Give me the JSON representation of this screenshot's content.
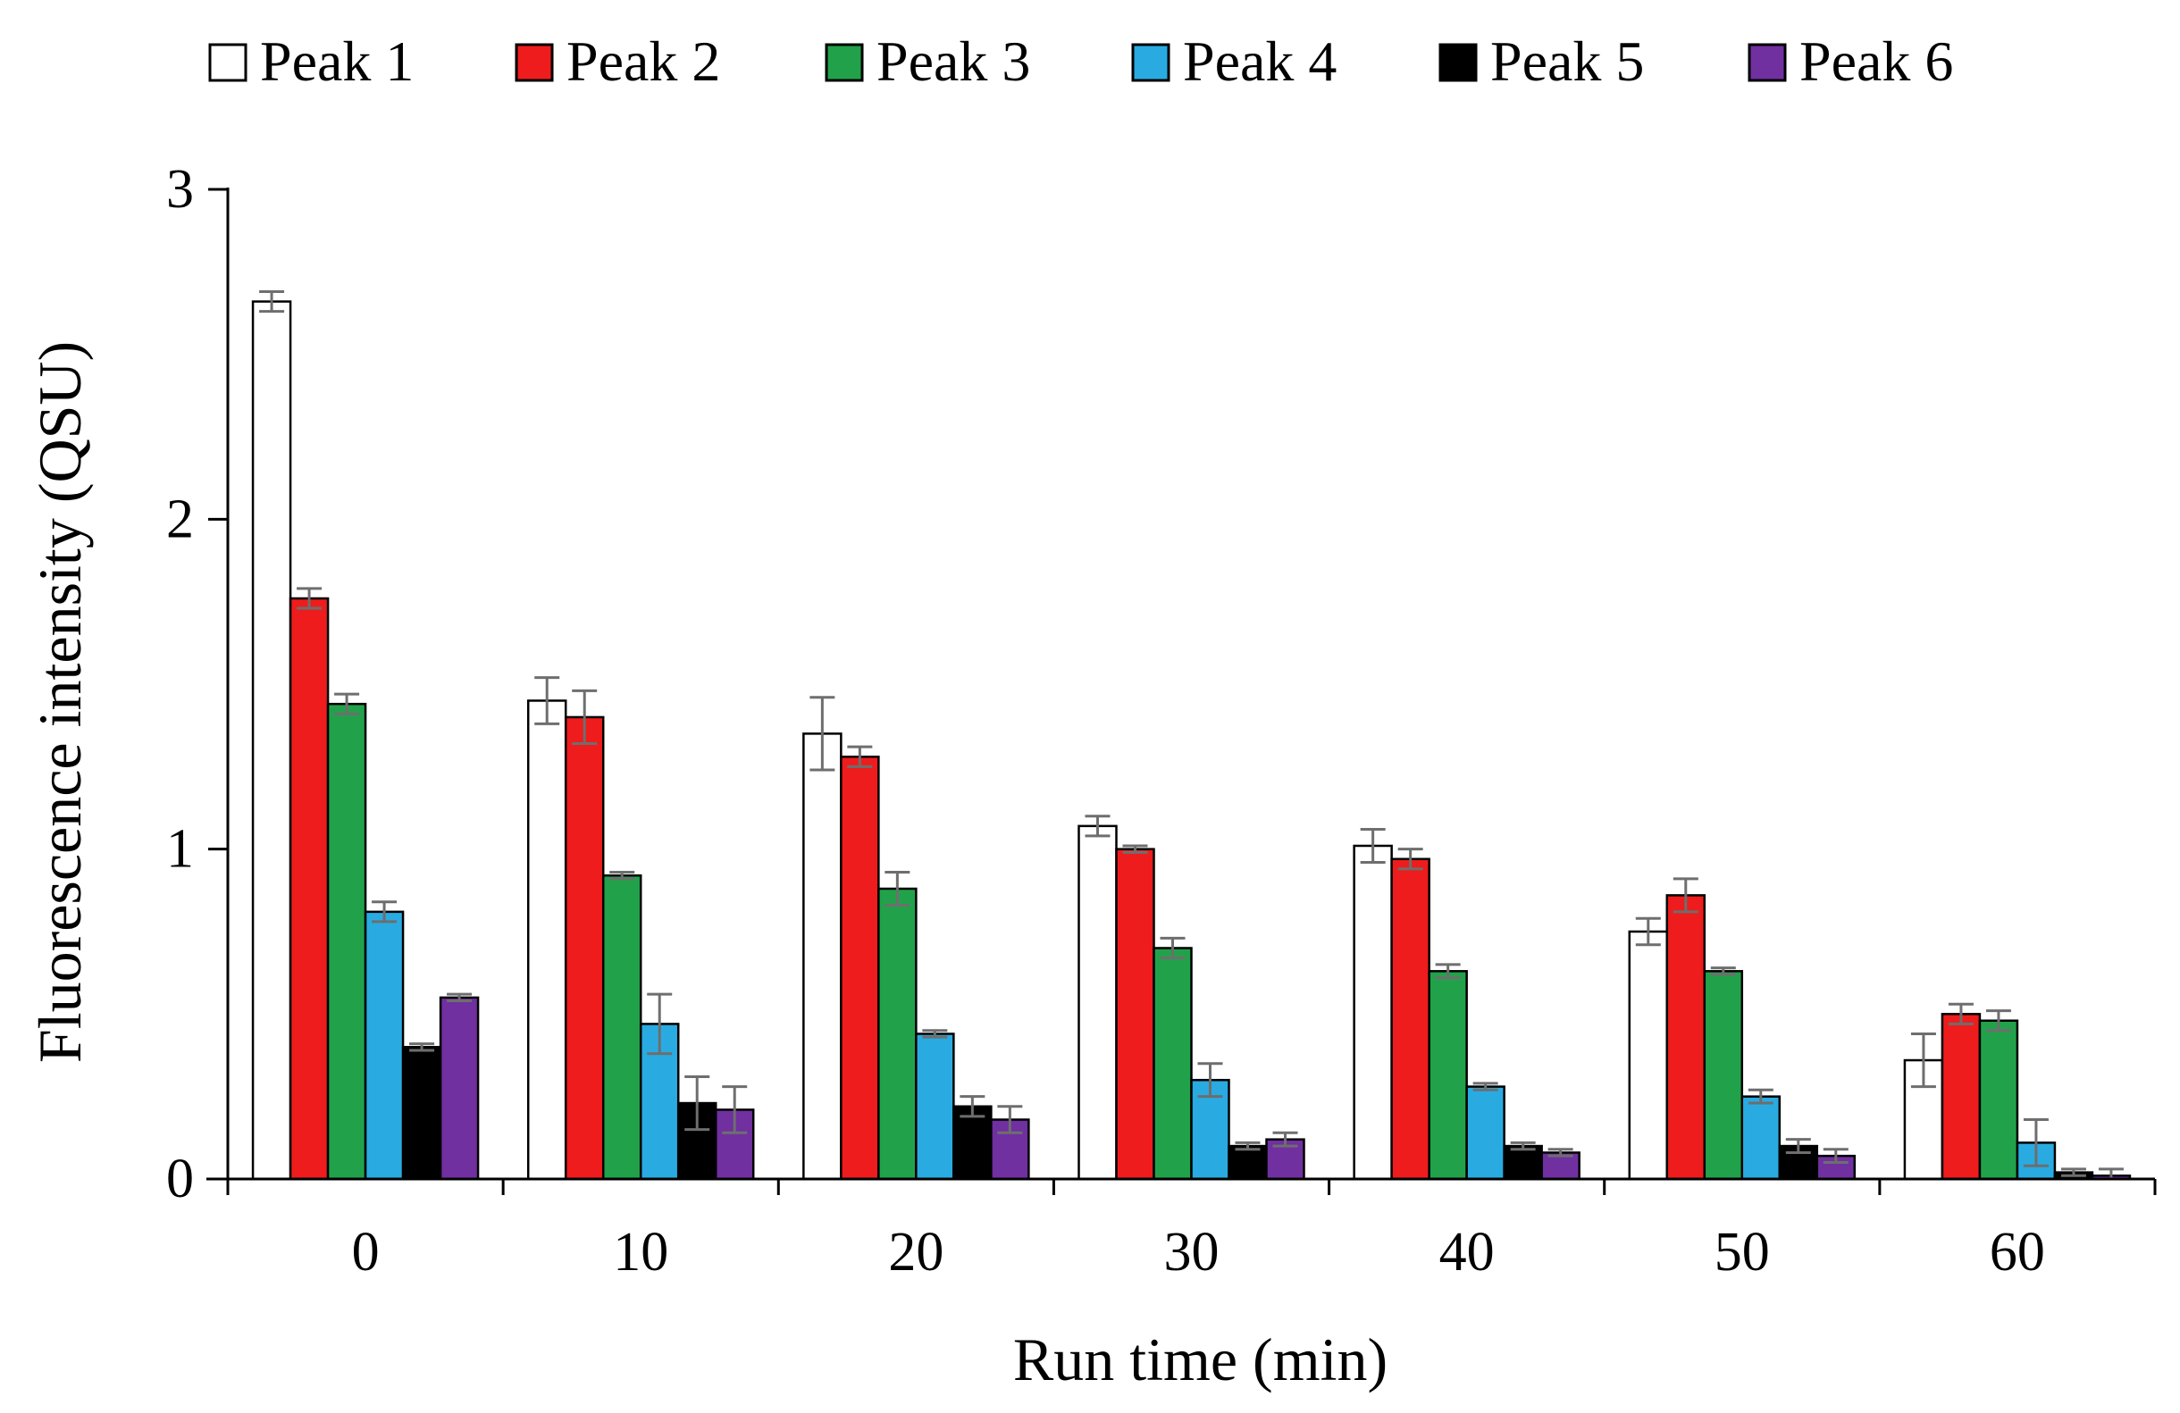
{
  "chart_data": {
    "type": "bar",
    "title": "",
    "xlabel": "Run time (min)",
    "ylabel": "Fluorescence intensity (QSU)",
    "categories": [
      "0",
      "10",
      "20",
      "30",
      "40",
      "50",
      "60"
    ],
    "ylim": [
      0,
      3
    ],
    "yticks": [
      "0",
      "1",
      "2",
      "3"
    ],
    "legend_position": "top",
    "grid": false,
    "series": [
      {
        "name": "Peak 1",
        "color": "#ffffff",
        "values": [
          2.66,
          1.45,
          1.35,
          1.07,
          1.01,
          0.75,
          0.36
        ],
        "errors": [
          0.03,
          0.07,
          0.11,
          0.03,
          0.05,
          0.04,
          0.08
        ]
      },
      {
        "name": "Peak 2",
        "color": "#ee1c1c",
        "values": [
          1.76,
          1.4,
          1.28,
          1.0,
          0.97,
          0.86,
          0.5
        ],
        "errors": [
          0.03,
          0.08,
          0.03,
          0.01,
          0.03,
          0.05,
          0.03
        ]
      },
      {
        "name": "Peak 3",
        "color": "#21a24a",
        "values": [
          1.44,
          0.92,
          0.88,
          0.7,
          0.63,
          0.63,
          0.48
        ],
        "errors": [
          0.03,
          0.01,
          0.05,
          0.03,
          0.02,
          0.01,
          0.03
        ]
      },
      {
        "name": "Peak 4",
        "color": "#29abe2",
        "values": [
          0.81,
          0.47,
          0.44,
          0.3,
          0.28,
          0.25,
          0.11
        ],
        "errors": [
          0.03,
          0.09,
          0.01,
          0.05,
          0.01,
          0.02,
          0.07
        ]
      },
      {
        "name": "Peak 5",
        "color": "#000000",
        "values": [
          0.4,
          0.23,
          0.22,
          0.1,
          0.1,
          0.1,
          0.02
        ],
        "errors": [
          0.01,
          0.08,
          0.03,
          0.01,
          0.01,
          0.02,
          0.01
        ]
      },
      {
        "name": "Peak 6",
        "color": "#7030a0",
        "values": [
          0.55,
          0.21,
          0.18,
          0.12,
          0.08,
          0.07,
          0.01
        ],
        "errors": [
          0.01,
          0.07,
          0.04,
          0.02,
          0.01,
          0.02,
          0.02
        ]
      }
    ]
  }
}
